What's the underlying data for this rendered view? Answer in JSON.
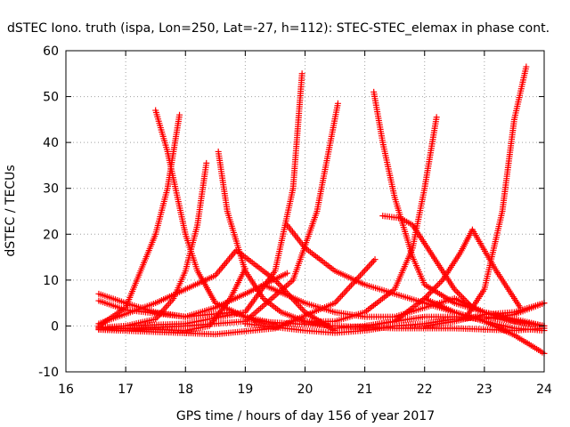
{
  "chart_data": {
    "type": "scatter",
    "title": "dSTEC Iono. truth (ispa, Lon=250, Lat=-27, h=112): STEC-STEC_elemax in phase cont.",
    "xlabel": "GPS time / hours of day 156 of year 2017",
    "ylabel": "dSTEC  / TECUs",
    "xlim": [
      16,
      24
    ],
    "ylim": [
      -10,
      60
    ],
    "xticks": [
      16,
      17,
      18,
      19,
      20,
      21,
      22,
      23,
      24
    ],
    "yticks": [
      -10,
      0,
      10,
      20,
      30,
      40,
      50,
      60
    ],
    "grid": true,
    "marker": "+",
    "color": "#ff0000",
    "series": [
      {
        "x": [
          16.55,
          17.0,
          17.5,
          18.0,
          18.4,
          18.75,
          19.0
        ],
        "y": [
          -0.5,
          -0.5,
          -0.8,
          -1.0,
          0.0,
          6.0,
          12.5
        ]
      },
      {
        "x": [
          16.55,
          17.0,
          17.5,
          17.7,
          17.8,
          17.9
        ],
        "y": [
          0.0,
          4.0,
          20.0,
          30.0,
          38.0,
          46.0
        ]
      },
      {
        "x": [
          16.55,
          17.0,
          17.5,
          17.8,
          18.0,
          18.2,
          18.35
        ],
        "y": [
          -0.3,
          0.0,
          1.5,
          6.0,
          12.0,
          22.0,
          35.5
        ]
      },
      {
        "x": [
          17.5,
          17.7,
          18.0,
          18.2,
          18.5,
          19.0,
          19.5
        ],
        "y": [
          47.0,
          38.0,
          20.0,
          12.0,
          5.0,
          2.0,
          0.5
        ]
      },
      {
        "x": [
          18.55,
          18.7,
          19.0,
          19.3,
          19.6,
          20.0,
          20.4
        ],
        "y": [
          38.0,
          25.0,
          12.0,
          6.0,
          3.0,
          1.0,
          0.0
        ]
      },
      {
        "x": [
          16.55,
          17.0,
          18.0,
          19.0,
          19.5,
          19.8,
          19.95
        ],
        "y": [
          -0.5,
          0.0,
          0.5,
          3.0,
          12.0,
          30.0,
          55.0
        ]
      },
      {
        "x": [
          16.55,
          17.0,
          18.0,
          19.0,
          19.8,
          20.2,
          20.55
        ],
        "y": [
          -0.8,
          -0.5,
          0.0,
          1.0,
          10.0,
          25.0,
          48.5
        ]
      },
      {
        "x": [
          16.55,
          17.5,
          18.5,
          19.5,
          20.5,
          21.17
        ],
        "y": [
          -0.8,
          -1.3,
          -1.8,
          -0.5,
          5.0,
          14.5
        ]
      },
      {
        "x": [
          16.55,
          17.0,
          17.5,
          18.0,
          18.5,
          19.0,
          19.7
        ],
        "y": [
          7.0,
          5.0,
          3.0,
          2.0,
          4.0,
          7.0,
          11.5
        ]
      },
      {
        "x": [
          16.55,
          17.0,
          18.0,
          18.8,
          19.2,
          19.8,
          20.5,
          21.5,
          22.5,
          23.5,
          24.0
        ],
        "y": [
          5.5,
          3.5,
          2.0,
          3.0,
          1.0,
          0.5,
          0.0,
          -0.5,
          -0.5,
          -1.0,
          -0.5
        ]
      },
      {
        "x": [
          16.55,
          17.5,
          18.5,
          18.85,
          19.5,
          20.0,
          20.5
        ],
        "y": [
          0.5,
          5.0,
          11.0,
          16.5,
          10.0,
          3.0,
          -1.0
        ]
      },
      {
        "x": [
          19.7,
          20.0,
          20.5,
          21.0,
          21.5,
          22.0,
          22.5,
          23.0,
          23.5,
          24.0
        ],
        "y": [
          22.0,
          17.0,
          12.0,
          9.0,
          7.0,
          5.0,
          3.0,
          1.0,
          -2.0,
          -6.0
        ]
      },
      {
        "x": [
          19.0,
          20.0,
          20.5,
          21.0,
          21.5,
          22.0,
          22.5,
          23.0,
          24.0
        ],
        "y": [
          0.5,
          -1.0,
          -1.5,
          -1.0,
          0.0,
          0.5,
          1.5,
          2.0,
          0.0
        ]
      },
      {
        "x": [
          19.3,
          20.0,
          20.5,
          21.0,
          21.5,
          22.0,
          22.5,
          23.0,
          24.0
        ],
        "y": [
          9.0,
          5.0,
          3.0,
          2.0,
          2.0,
          4.0,
          6.0,
          3.0,
          0.0
        ]
      },
      {
        "x": [
          21.15,
          21.3,
          21.5,
          21.8,
          22.0,
          22.5,
          23.0,
          23.5,
          24.0
        ],
        "y": [
          51.0,
          40.0,
          28.0,
          15.0,
          9.0,
          5.0,
          3.0,
          1.0,
          0.0
        ]
      },
      {
        "x": [
          21.3,
          21.6,
          21.8,
          22.0,
          22.3,
          22.5,
          22.8
        ],
        "y": [
          24.0,
          23.5,
          22.0,
          18.0,
          12.0,
          8.0,
          4.0
        ]
      },
      {
        "x": [
          20.0,
          20.5,
          21.0,
          21.5,
          21.8,
          22.0,
          22.2
        ],
        "y": [
          1.0,
          1.0,
          3.0,
          8.0,
          17.0,
          30.0,
          45.5
        ]
      },
      {
        "x": [
          21.0,
          21.5,
          22.0,
          22.3,
          22.6,
          22.8,
          23.2,
          23.6
        ],
        "y": [
          0.0,
          1.0,
          6.0,
          10.0,
          16.0,
          21.0,
          12.0,
          4.0
        ]
      },
      {
        "x": [
          22.7,
          23.0,
          23.3,
          23.5,
          23.7
        ],
        "y": [
          2.0,
          8.0,
          25.0,
          45.0,
          56.5
        ]
      },
      {
        "x": [
          20.5,
          21.0,
          21.5,
          22.0,
          22.5,
          23.0,
          23.5,
          24.0
        ],
        "y": [
          -0.5,
          0.0,
          1.0,
          2.0,
          2.0,
          1.5,
          2.5,
          5.0
        ]
      },
      {
        "x": [
          22.0,
          22.5,
          23.0,
          23.5,
          24.0
        ],
        "y": [
          6.0,
          3.0,
          1.0,
          -0.5,
          -1.0
        ]
      },
      {
        "x": [
          22.0,
          22.5,
          23.0,
          23.5,
          24.0
        ],
        "y": [
          0.0,
          1.0,
          2.5,
          3.0,
          5.0
        ]
      }
    ]
  }
}
